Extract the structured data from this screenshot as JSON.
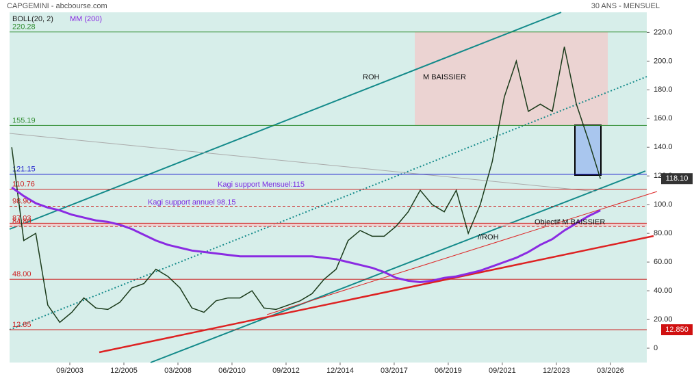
{
  "chart_data": {
    "type": "line",
    "title": "CAPGEMINI - abcbourse.com",
    "subtitle": "30 ANS - MENSUEL",
    "indicator": "BOLL(20, 2)",
    "xlim": [
      2001.16,
      2027.68
    ],
    "ylim": [
      -10,
      234
    ],
    "xticks": [
      {
        "value": 2003.667,
        "label": "09/2003"
      },
      {
        "value": 2005.917,
        "label": "12/2005"
      },
      {
        "value": 2008.167,
        "label": "03/2008"
      },
      {
        "value": 2010.417,
        "label": "06/2010"
      },
      {
        "value": 2012.667,
        "label": "09/2012"
      },
      {
        "value": 2014.917,
        "label": "12/2014"
      },
      {
        "value": 2017.167,
        "label": "03/2017"
      },
      {
        "value": 2019.417,
        "label": "06/2019"
      },
      {
        "value": 2021.667,
        "label": "09/2021"
      },
      {
        "value": 2023.917,
        "label": "12/2023"
      },
      {
        "value": 2026.167,
        "label": "03/2026"
      }
    ],
    "yticks": [
      0,
      {
        "value": 20,
        "label": "20.00"
      },
      {
        "value": 40,
        "label": "40.00"
      },
      {
        "value": 60,
        "label": "60.00"
      },
      {
        "value": 80,
        "label": "80.00"
      },
      {
        "value": 100,
        "label": "100.0"
      },
      {
        "value": 120,
        "label": "120.0"
      },
      {
        "value": 140,
        "label": "140.0"
      },
      {
        "value": 160,
        "label": "160.0"
      },
      {
        "value": 180,
        "label": "180.0"
      },
      {
        "value": 200,
        "label": "200.0"
      },
      {
        "value": 220,
        "label": "220.0"
      }
    ],
    "x": [
      2001.25,
      2001.75,
      2002.25,
      2002.75,
      2003.25,
      2003.75,
      2004.25,
      2004.75,
      2005.25,
      2005.75,
      2006.25,
      2006.75,
      2007.25,
      2007.75,
      2008.25,
      2008.75,
      2009.25,
      2009.75,
      2010.25,
      2010.75,
      2011.25,
      2011.75,
      2012.25,
      2012.75,
      2013.25,
      2013.75,
      2014.25,
      2014.75,
      2015.25,
      2015.75,
      2016.25,
      2016.75,
      2017.25,
      2017.75,
      2018.25,
      2018.75,
      2019.25,
      2019.75,
      2020.25,
      2020.75,
      2021.25,
      2021.75,
      2022.25,
      2022.75,
      2023.25,
      2023.75,
      2024.25,
      2024.75,
      2025.25,
      2025.75
    ],
    "series": [
      {
        "color": "#1a3a1a",
        "values": [
          140,
          75,
          80,
          30,
          18,
          25,
          35,
          28,
          27,
          32,
          42,
          45,
          55,
          50,
          42,
          28,
          25,
          33,
          35,
          35,
          40,
          28,
          27,
          30,
          33,
          38,
          48,
          55,
          75,
          82,
          78,
          78,
          85,
          95,
          110,
          100,
          95,
          110,
          80,
          100,
          130,
          175,
          200,
          165,
          170,
          165,
          210,
          170,
          145,
          118.1
        ]
      },
      {
        "name": "MM (200)",
        "color": "#8a2be2",
        "values": [
          112,
          106,
          101,
          98,
          96,
          93,
          91,
          89,
          88,
          86,
          83,
          79,
          75,
          72,
          70,
          68,
          67,
          66,
          65,
          64,
          64,
          64,
          64,
          64,
          64,
          64,
          63,
          62,
          60,
          58,
          56,
          53,
          49,
          47,
          46,
          47,
          49,
          50,
          52,
          54,
          57,
          60,
          63,
          67,
          72,
          76,
          82,
          87,
          92,
          96
        ]
      }
    ],
    "levels": [
      {
        "value": 220.28,
        "label": "220.28",
        "color": "#2e8b2e"
      },
      {
        "value": 155.19,
        "label": "155.19",
        "color": "#2e8b2e"
      },
      {
        "value": 121.15,
        "label": "121.15",
        "color": "#1a1acc"
      },
      {
        "value": 110.76,
        "label": "110.76",
        "color": "#cc2222"
      },
      {
        "value": 98.9,
        "label": "98.90",
        "color": "#cc2222"
      },
      {
        "value": 87.03,
        "label": "87.03",
        "color": "#cc2222"
      },
      {
        "value": 84.8,
        "label": "84.80",
        "color": "#cc2222"
      },
      {
        "value": 48,
        "label": "48.00",
        "color": "#cc2222"
      },
      {
        "value": 12.85,
        "label": "12.85",
        "color": "#cc2222"
      }
    ],
    "annotations": [
      "ROH",
      "M BAISSIER",
      "//ROH",
      "Kagi support Mensuel:115",
      "Kagi support annuel 98.15",
      "Objectif M BAISSIER"
    ],
    "last_price": {
      "value": 118.1,
      "label": "118.10"
    },
    "low_price": {
      "value": 12.85,
      "label": "12.850"
    }
  }
}
